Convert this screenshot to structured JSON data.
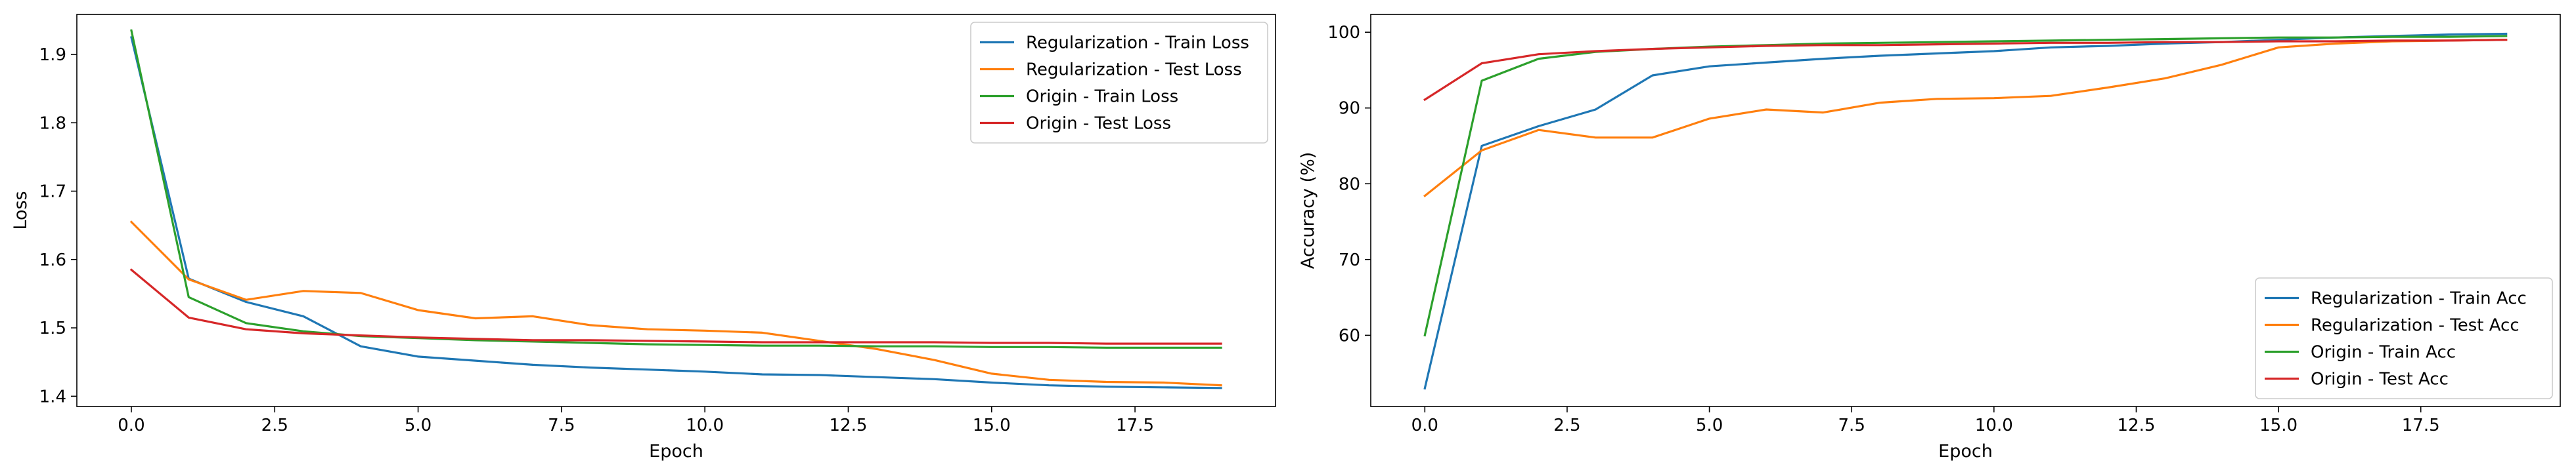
{
  "chart_data": [
    {
      "type": "line",
      "title": "",
      "xlabel": "Epoch",
      "ylabel": "Loss",
      "x": [
        0,
        1,
        2,
        3,
        4,
        5,
        6,
        7,
        8,
        9,
        10,
        11,
        12,
        13,
        14,
        15,
        16,
        17,
        18,
        19
      ],
      "xlim": [
        -0.95,
        19.95
      ],
      "ylim": [
        1.385,
        1.9585
      ],
      "xticks": [
        0.0,
        2.5,
        5.0,
        7.5,
        10.0,
        12.5,
        15.0,
        17.5
      ],
      "xtick_labels": [
        "0.0",
        "2.5",
        "5.0",
        "7.5",
        "10.0",
        "12.5",
        "15.0",
        "17.5"
      ],
      "yticks": [
        1.4,
        1.5,
        1.6,
        1.7,
        1.8,
        1.9
      ],
      "ytick_labels": [
        "1.4",
        "1.5",
        "1.6",
        "1.7",
        "1.8",
        "1.9"
      ],
      "grid": false,
      "legend_position": "top-right",
      "series": [
        {
          "name": "Regularization - Train Loss",
          "color": "#1f77b4",
          "values": [
            1.925,
            1.572,
            1.538,
            1.517,
            1.473,
            1.458,
            1.452,
            1.446,
            1.442,
            1.439,
            1.436,
            1.432,
            1.431,
            1.428,
            1.425,
            1.42,
            1.416,
            1.414,
            1.413,
            1.412
          ]
        },
        {
          "name": "Regularization - Test Loss",
          "color": "#ff7f0e",
          "values": [
            1.655,
            1.571,
            1.541,
            1.554,
            1.551,
            1.526,
            1.514,
            1.517,
            1.504,
            1.498,
            1.496,
            1.493,
            1.481,
            1.469,
            1.453,
            1.433,
            1.424,
            1.421,
            1.42,
            1.416
          ]
        },
        {
          "name": "Origin - Train Loss",
          "color": "#2ca02c",
          "values": [
            1.935,
            1.545,
            1.507,
            1.495,
            1.488,
            1.485,
            1.482,
            1.48,
            1.478,
            1.476,
            1.475,
            1.474,
            1.474,
            1.473,
            1.473,
            1.472,
            1.472,
            1.471,
            1.471,
            1.471
          ]
        },
        {
          "name": "Origin - Test Loss",
          "color": "#d62728",
          "values": [
            1.585,
            1.515,
            1.498,
            1.492,
            1.489,
            1.486,
            1.484,
            1.482,
            1.482,
            1.481,
            1.48,
            1.479,
            1.479,
            1.479,
            1.479,
            1.478,
            1.478,
            1.477,
            1.477,
            1.477
          ]
        }
      ]
    },
    {
      "type": "line",
      "title": "",
      "xlabel": "Epoch",
      "ylabel": "Accuracy (%)",
      "x": [
        0,
        1,
        2,
        3,
        4,
        5,
        6,
        7,
        8,
        9,
        10,
        11,
        12,
        13,
        14,
        15,
        16,
        17,
        18,
        19
      ],
      "xlim": [
        -0.95,
        19.95
      ],
      "ylim": [
        50.6,
        102.35
      ],
      "xticks": [
        0.0,
        2.5,
        5.0,
        7.5,
        10.0,
        12.5,
        15.0,
        17.5
      ],
      "xtick_labels": [
        "0.0",
        "2.5",
        "5.0",
        "7.5",
        "10.0",
        "12.5",
        "15.0",
        "17.5"
      ],
      "yticks": [
        60,
        70,
        80,
        90,
        100
      ],
      "ytick_labels": [
        "60",
        "70",
        "80",
        "90",
        "100"
      ],
      "grid": false,
      "legend_position": "bottom-right",
      "series": [
        {
          "name": "Regularization - Train Acc",
          "color": "#1f77b4",
          "values": [
            53.0,
            85.0,
            87.6,
            89.8,
            94.3,
            95.5,
            96.0,
            96.5,
            96.9,
            97.2,
            97.5,
            98.0,
            98.2,
            98.5,
            98.7,
            99.0,
            99.3,
            99.5,
            99.7,
            99.8
          ]
        },
        {
          "name": "Regularization - Test Acc",
          "color": "#ff7f0e",
          "values": [
            78.4,
            84.4,
            87.1,
            86.1,
            86.1,
            88.6,
            89.8,
            89.4,
            90.7,
            91.2,
            91.3,
            91.6,
            92.7,
            93.9,
            95.7,
            98.0,
            98.5,
            98.8,
            98.9,
            99.0
          ]
        },
        {
          "name": "Origin - Train Acc",
          "color": "#2ca02c",
          "values": [
            60.0,
            93.6,
            96.5,
            97.4,
            97.8,
            98.1,
            98.3,
            98.5,
            98.6,
            98.7,
            98.8,
            98.9,
            99.0,
            99.1,
            99.2,
            99.3,
            99.3,
            99.4,
            99.4,
            99.5
          ]
        },
        {
          "name": "Origin - Test Acc",
          "color": "#d62728",
          "values": [
            91.1,
            95.9,
            97.1,
            97.5,
            97.8,
            98.0,
            98.2,
            98.3,
            98.3,
            98.4,
            98.5,
            98.6,
            98.6,
            98.7,
            98.7,
            98.8,
            98.8,
            98.9,
            98.9,
            99.0
          ]
        }
      ]
    }
  ]
}
